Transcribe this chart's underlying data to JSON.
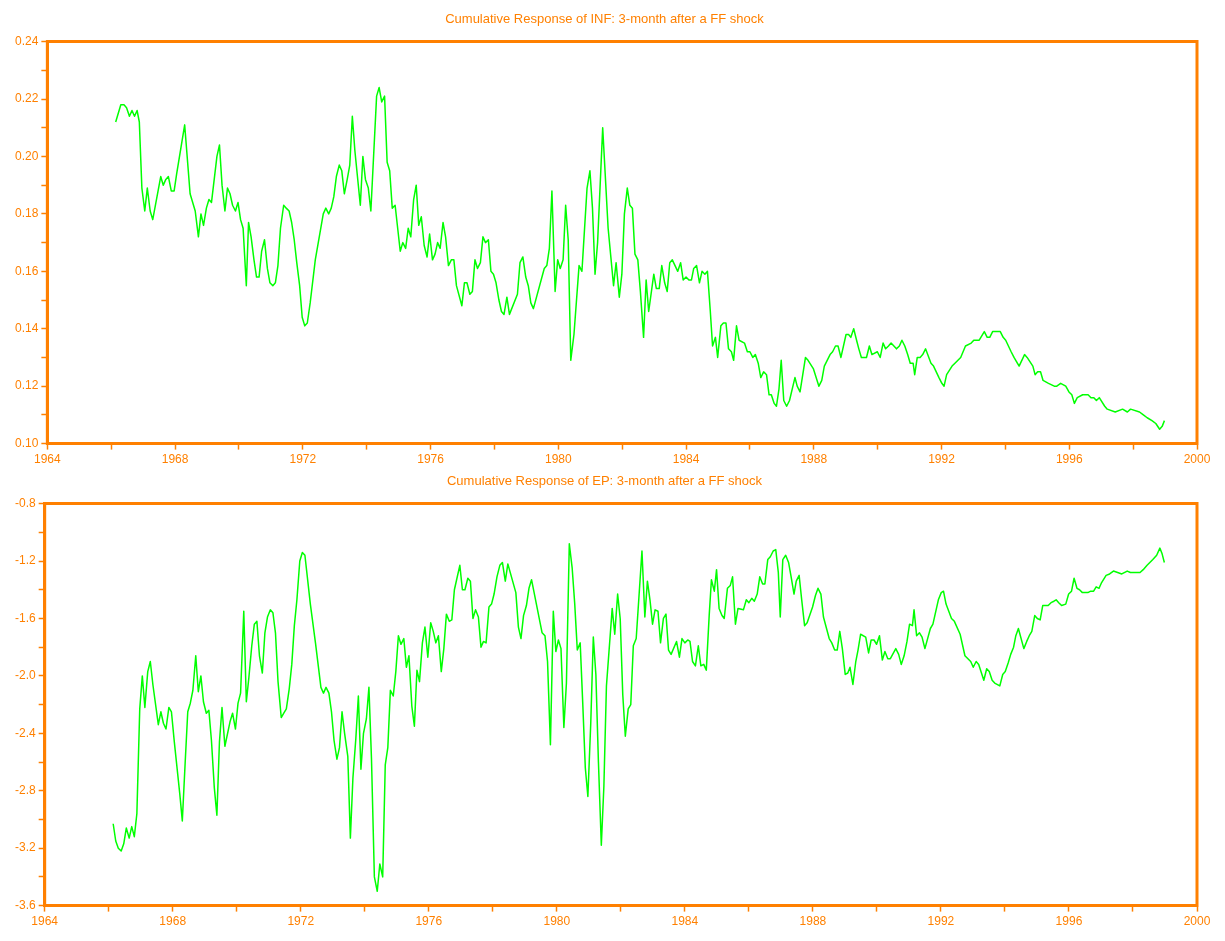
{
  "chart_data": [
    {
      "type": "line",
      "title": "Cumulative Response of INF: 3-month after a FF shock",
      "color": "#00ff00",
      "grid": false,
      "legend": false,
      "x": [
        1966.14,
        1966.3,
        1966.4,
        1966.48,
        1966.57,
        1966.65,
        1966.73,
        1966.81,
        1966.88,
        1966.96,
        1967.05,
        1967.13,
        1967.22,
        1967.3,
        1967.55,
        1967.63,
        1967.71,
        1967.79,
        1967.88,
        1967.97,
        1968.05,
        1968.3,
        1968.47,
        1968.63,
        1968.73,
        1968.81,
        1968.89,
        1968.98,
        1969.06,
        1969.14,
        1969.31,
        1969.39,
        1969.47,
        1969.56,
        1969.64,
        1969.72,
        1969.8,
        1969.89,
        1969.97,
        1970.05,
        1970.13,
        1970.23,
        1970.3,
        1970.38,
        1970.47,
        1970.55,
        1970.63,
        1970.71,
        1970.8,
        1970.89,
        1970.97,
        1971.06,
        1971.14,
        1971.22,
        1971.3,
        1971.4,
        1971.48,
        1971.57,
        1971.65,
        1971.73,
        1971.81,
        1971.9,
        1971.98,
        1972.06,
        1972.14,
        1972.23,
        1972.39,
        1972.64,
        1972.72,
        1972.81,
        1972.89,
        1972.97,
        1973.05,
        1973.14,
        1973.22,
        1973.3,
        1973.39,
        1973.47,
        1973.55,
        1973.63,
        1973.8,
        1973.88,
        1973.96,
        1974.05,
        1974.13,
        1974.31,
        1974.39,
        1974.47,
        1974.56,
        1974.64,
        1974.72,
        1974.8,
        1974.89,
        1975.05,
        1975.13,
        1975.22,
        1975.3,
        1975.38,
        1975.47,
        1975.55,
        1975.63,
        1975.71,
        1975.8,
        1975.89,
        1975.97,
        1976.06,
        1976.14,
        1976.22,
        1976.3,
        1976.39,
        1976.47,
        1976.56,
        1976.65,
        1976.73,
        1976.81,
        1976.98,
        1977.06,
        1977.14,
        1977.23,
        1977.31,
        1977.39,
        1977.47,
        1977.56,
        1977.64,
        1977.72,
        1977.81,
        1977.89,
        1977.97,
        1978.05,
        1978.14,
        1978.22,
        1978.3,
        1978.39,
        1978.47,
        1978.72,
        1978.8,
        1978.89,
        1978.98,
        1979.06,
        1979.14,
        1979.22,
        1979.56,
        1979.64,
        1979.72,
        1979.8,
        1979.9,
        1979.98,
        1980.06,
        1980.15,
        1980.23,
        1980.31,
        1980.39,
        1980.49,
        1980.65,
        1980.74,
        1980.9,
        1980.99,
        1981.07,
        1981.15,
        1981.23,
        1981.39,
        1981.56,
        1981.73,
        1981.81,
        1981.91,
        1981.99,
        1982.07,
        1982.16,
        1982.24,
        1982.32,
        1982.4,
        1982.49,
        1982.57,
        1982.67,
        1982.75,
        1982.83,
        1982.99,
        1983.07,
        1983.16,
        1983.24,
        1983.33,
        1983.41,
        1983.49,
        1983.57,
        1983.74,
        1983.83,
        1983.91,
        1984.0,
        1984.09,
        1984.17,
        1984.24,
        1984.33,
        1984.42,
        1984.5,
        1984.59,
        1984.67,
        1984.76,
        1984.83,
        1984.92,
        1984.99,
        1985.09,
        1985.17,
        1985.25,
        1985.33,
        1985.42,
        1985.49,
        1985.58,
        1985.66,
        1985.83,
        1985.92,
        1986.0,
        1986.09,
        1986.17,
        1986.26,
        1986.34,
        1986.43,
        1986.52,
        1986.6,
        1986.67,
        1986.76,
        1986.83,
        1986.91,
        1986.98,
        1987.06,
        1987.15,
        1987.24,
        1987.41,
        1987.48,
        1987.57,
        1987.74,
        1987.82,
        1987.99,
        1988.16,
        1988.25,
        1988.33,
        1988.51,
        1988.59,
        1988.68,
        1988.76,
        1988.85,
        1989.01,
        1989.09,
        1989.16,
        1989.25,
        1989.34,
        1989.41,
        1989.49,
        1989.65,
        1989.74,
        1989.82,
        1989.99,
        1990.08,
        1990.17,
        1990.25,
        1990.34,
        1990.42,
        1990.59,
        1990.68,
        1990.76,
        1990.85,
        1990.94,
        1991.02,
        1991.11,
        1991.16,
        1991.24,
        1991.33,
        1991.41,
        1991.5,
        1991.67,
        1991.75,
        1991.92,
        1992.01,
        1992.08,
        1992.16,
        1992.33,
        1992.42,
        1992.6,
        1992.75,
        1992.93,
        1993.01,
        1993.1,
        1993.18,
        1993.34,
        1993.43,
        1993.51,
        1993.6,
        1993.68,
        1993.77,
        1993.84,
        1993.93,
        1994.01,
        1994.18,
        1994.27,
        1994.43,
        1994.6,
        1994.68,
        1994.86,
        1994.93,
        1995.01,
        1995.1,
        1995.18,
        1995.35,
        1995.53,
        1995.61,
        1995.73,
        1995.89,
        1995.99,
        1996.08,
        1996.16,
        1996.25,
        1996.42,
        1996.59,
        1996.68,
        1996.77,
        1996.85,
        1996.94,
        1997.11,
        1997.19,
        1997.44,
        1997.67,
        1997.82,
        1997.92,
        1998.2,
        1998.32,
        1998.44,
        1998.59,
        1998.71,
        1998.83,
        1998.91,
        1998.98
      ],
      "values": [
        0.212,
        0.218,
        0.218,
        0.217,
        0.214,
        0.216,
        0.214,
        0.216,
        0.212,
        0.189,
        0.181,
        0.189,
        0.181,
        0.178,
        0.193,
        0.19,
        0.192,
        0.193,
        0.188,
        0.188,
        0.194,
        0.211,
        0.187,
        0.181,
        0.172,
        0.18,
        0.176,
        0.182,
        0.185,
        0.184,
        0.2,
        0.204,
        0.19,
        0.181,
        0.189,
        0.187,
        0.183,
        0.181,
        0.184,
        0.178,
        0.175,
        0.155,
        0.177,
        0.172,
        0.164,
        0.158,
        0.158,
        0.167,
        0.171,
        0.161,
        0.156,
        0.155,
        0.156,
        0.162,
        0.175,
        0.183,
        0.182,
        0.181,
        0.177,
        0.171,
        0.163,
        0.155,
        0.144,
        0.141,
        0.142,
        0.149,
        0.164,
        0.18,
        0.182,
        0.18,
        0.182,
        0.186,
        0.193,
        0.197,
        0.195,
        0.187,
        0.192,
        0.197,
        0.214,
        0.202,
        0.183,
        0.2,
        0.192,
        0.189,
        0.181,
        0.221,
        0.224,
        0.219,
        0.221,
        0.198,
        0.195,
        0.182,
        0.183,
        0.167,
        0.17,
        0.168,
        0.175,
        0.172,
        0.185,
        0.19,
        0.176,
        0.179,
        0.169,
        0.165,
        0.173,
        0.164,
        0.166,
        0.17,
        0.168,
        0.177,
        0.172,
        0.162,
        0.164,
        0.164,
        0.155,
        0.148,
        0.156,
        0.156,
        0.152,
        0.153,
        0.164,
        0.161,
        0.163,
        0.172,
        0.17,
        0.171,
        0.16,
        0.159,
        0.156,
        0.15,
        0.146,
        0.145,
        0.151,
        0.145,
        0.152,
        0.163,
        0.165,
        0.158,
        0.155,
        0.149,
        0.147,
        0.161,
        0.162,
        0.168,
        0.188,
        0.153,
        0.164,
        0.161,
        0.164,
        0.183,
        0.171,
        0.129,
        0.138,
        0.162,
        0.16,
        0.189,
        0.195,
        0.182,
        0.159,
        0.17,
        0.21,
        0.175,
        0.155,
        0.163,
        0.151,
        0.159,
        0.18,
        0.189,
        0.183,
        0.182,
        0.166,
        0.164,
        0.153,
        0.137,
        0.157,
        0.146,
        0.159,
        0.154,
        0.154,
        0.162,
        0.156,
        0.153,
        0.163,
        0.164,
        0.16,
        0.163,
        0.157,
        0.158,
        0.157,
        0.157,
        0.161,
        0.162,
        0.156,
        0.16,
        0.159,
        0.16,
        0.146,
        0.134,
        0.137,
        0.13,
        0.141,
        0.142,
        0.142,
        0.133,
        0.132,
        0.129,
        0.141,
        0.136,
        0.135,
        0.132,
        0.132,
        0.13,
        0.131,
        0.128,
        0.123,
        0.125,
        0.124,
        0.117,
        0.117,
        0.114,
        0.113,
        0.119,
        0.129,
        0.115,
        0.113,
        0.115,
        0.123,
        0.12,
        0.118,
        0.13,
        0.129,
        0.126,
        0.12,
        0.122,
        0.127,
        0.131,
        0.132,
        0.134,
        0.134,
        0.13,
        0.138,
        0.138,
        0.137,
        0.14,
        0.136,
        0.133,
        0.13,
        0.13,
        0.134,
        0.131,
        0.132,
        0.13,
        0.135,
        0.133,
        0.134,
        0.135,
        0.133,
        0.134,
        0.136,
        0.134,
        0.131,
        0.128,
        0.128,
        0.124,
        0.13,
        0.13,
        0.131,
        0.133,
        0.128,
        0.127,
        0.123,
        0.121,
        0.12,
        0.124,
        0.127,
        0.128,
        0.13,
        0.134,
        0.135,
        0.136,
        0.136,
        0.136,
        0.139,
        0.137,
        0.137,
        0.139,
        0.139,
        0.139,
        0.139,
        0.137,
        0.136,
        0.132,
        0.13,
        0.127,
        0.131,
        0.13,
        0.127,
        0.124,
        0.125,
        0.125,
        0.122,
        0.121,
        0.12,
        0.12,
        0.121,
        0.12,
        0.118,
        0.117,
        0.114,
        0.116,
        0.117,
        0.117,
        0.116,
        0.116,
        0.115,
        0.116,
        0.113,
        0.112,
        0.111,
        0.112,
        0.111,
        0.112,
        0.111,
        0.11,
        0.109,
        0.108,
        0.107,
        0.105,
        0.106,
        0.108
      ],
      "xlim": [
        1964,
        2000
      ],
      "xticks": [
        1964,
        {
          "value": 1966,
          "label": null
        },
        1968,
        {
          "value": 1970,
          "label": null
        },
        1972,
        {
          "value": 1974,
          "label": null
        },
        1976,
        {
          "value": 1978,
          "label": null
        },
        1980,
        {
          "value": 1982,
          "label": null
        },
        1984,
        {
          "value": 1986,
          "label": null
        },
        1988,
        {
          "value": 1990,
          "label": null
        },
        1992,
        {
          "value": 1994,
          "label": null
        },
        1996,
        {
          "value": 1998,
          "label": null
        },
        2000
      ],
      "ylim": [
        0.1,
        0.24
      ],
      "yticks": [
        {
          "value": 0.1,
          "label": "0.10"
        },
        {
          "value": 0.11,
          "label": null
        },
        0.12,
        {
          "value": 0.13,
          "label": null
        },
        0.14,
        {
          "value": 0.15,
          "label": null
        },
        0.16,
        {
          "value": 0.17,
          "label": null
        },
        0.18,
        {
          "value": 0.19,
          "label": null
        },
        {
          "value": 0.2,
          "label": "0.20"
        },
        {
          "value": 0.21,
          "label": null
        },
        0.22,
        {
          "value": 0.23,
          "label": null
        },
        0.24
      ]
    },
    {
      "type": "line",
      "title": "Cumulative Response of EP: 3-month after a FF shock",
      "color": "#00ff00",
      "grid": false,
      "legend": false,
      "x": [
        1966.14,
        1966.22,
        1966.3,
        1966.39,
        1966.47,
        1966.55,
        1966.64,
        1966.72,
        1966.8,
        1966.88,
        1966.97,
        1967.05,
        1967.13,
        1967.22,
        1967.3,
        1967.38,
        1967.55,
        1967.63,
        1967.71,
        1967.79,
        1967.88,
        1967.96,
        1968.05,
        1968.22,
        1968.3,
        1968.39,
        1968.47,
        1968.55,
        1968.63,
        1968.72,
        1968.8,
        1968.88,
        1968.96,
        1969.05,
        1969.13,
        1969.21,
        1969.3,
        1969.38,
        1969.46,
        1969.54,
        1969.63,
        1969.79,
        1969.87,
        1969.96,
        1970.04,
        1970.12,
        1970.22,
        1970.3,
        1970.38,
        1970.47,
        1970.55,
        1970.63,
        1970.71,
        1970.8,
        1970.88,
        1970.96,
        1971.05,
        1971.13,
        1971.21,
        1971.29,
        1971.39,
        1971.47,
        1971.55,
        1971.64,
        1971.72,
        1971.8,
        1971.88,
        1971.97,
        1972.05,
        1972.13,
        1972.3,
        1972.46,
        1972.63,
        1972.71,
        1972.79,
        1972.88,
        1972.96,
        1973.04,
        1973.13,
        1973.21,
        1973.29,
        1973.37,
        1973.47,
        1973.55,
        1973.63,
        1973.72,
        1973.8,
        1973.88,
        1973.96,
        1974.05,
        1974.13,
        1974.21,
        1974.3,
        1974.39,
        1974.47,
        1974.56,
        1974.64,
        1974.72,
        1974.8,
        1974.89,
        1974.97,
        1975.05,
        1975.13,
        1975.22,
        1975.3,
        1975.38,
        1975.47,
        1975.55,
        1975.63,
        1975.71,
        1975.8,
        1975.88,
        1975.97,
        1976.06,
        1976.14,
        1976.22,
        1976.3,
        1976.39,
        1976.47,
        1976.55,
        1976.64,
        1976.72,
        1976.8,
        1976.88,
        1976.97,
        1977.05,
        1977.13,
        1977.22,
        1977.3,
        1977.38,
        1977.46,
        1977.55,
        1977.63,
        1977.71,
        1977.79,
        1977.88,
        1977.96,
        1978.04,
        1978.13,
        1978.22,
        1978.3,
        1978.39,
        1978.47,
        1978.72,
        1978.8,
        1978.88,
        1978.96,
        1979.05,
        1979.13,
        1979.21,
        1979.54,
        1979.63,
        1979.71,
        1979.8,
        1979.89,
        1979.97,
        1980.05,
        1980.13,
        1980.22,
        1980.3,
        1980.39,
        1980.48,
        1980.56,
        1980.64,
        1980.73,
        1980.81,
        1980.89,
        1980.97,
        1981.06,
        1981.14,
        1981.22,
        1981.3,
        1981.39,
        1981.47,
        1981.55,
        1981.73,
        1981.81,
        1981.9,
        1981.98,
        1982.06,
        1982.14,
        1982.23,
        1982.31,
        1982.39,
        1982.48,
        1982.66,
        1982.75,
        1982.83,
        1982.91,
        1982.99,
        1983.07,
        1983.16,
        1983.24,
        1983.33,
        1983.41,
        1983.49,
        1983.57,
        1983.74,
        1983.83,
        1983.91,
        1984.0,
        1984.09,
        1984.16,
        1984.24,
        1984.33,
        1984.42,
        1984.5,
        1984.59,
        1984.67,
        1984.76,
        1984.83,
        1984.92,
        1984.99,
        1985.07,
        1985.16,
        1985.23,
        1985.33,
        1985.42,
        1985.49,
        1985.58,
        1985.66,
        1985.83,
        1985.92,
        1986.0,
        1986.09,
        1986.17,
        1986.26,
        1986.34,
        1986.43,
        1986.5,
        1986.59,
        1986.67,
        1986.76,
        1986.84,
        1986.92,
        1986.98,
        1987.06,
        1987.15,
        1987.24,
        1987.32,
        1987.41,
        1987.48,
        1987.57,
        1987.65,
        1987.74,
        1987.82,
        1987.99,
        1988.08,
        1988.16,
        1988.25,
        1988.33,
        1988.51,
        1988.59,
        1988.68,
        1988.76,
        1988.84,
        1988.92,
        1989.01,
        1989.09,
        1989.16,
        1989.25,
        1989.34,
        1989.41,
        1989.49,
        1989.65,
        1989.74,
        1989.82,
        1989.91,
        1989.99,
        1990.08,
        1990.17,
        1990.25,
        1990.34,
        1990.42,
        1990.59,
        1990.68,
        1990.76,
        1990.85,
        1990.94,
        1991.02,
        1991.11,
        1991.16,
        1991.24,
        1991.33,
        1991.41,
        1991.5,
        1991.67,
        1991.75,
        1991.92,
        1992.01,
        1992.08,
        1992.16,
        1992.33,
        1992.42,
        1992.6,
        1992.75,
        1992.93,
        1993.01,
        1993.1,
        1993.18,
        1993.34,
        1993.43,
        1993.51,
        1993.6,
        1993.68,
        1993.84,
        1993.93,
        1994.01,
        1994.1,
        1994.18,
        1994.27,
        1994.34,
        1994.42,
        1994.59,
        1994.68,
        1994.76,
        1994.84,
        1994.93,
        1995.01,
        1995.1,
        1995.18,
        1995.35,
        1995.44,
        1995.53,
        1995.6,
        1995.68,
        1995.77,
        1995.9,
        1995.99,
        1996.08,
        1996.16,
        1996.25,
        1996.33,
        1996.42,
        1996.59,
        1996.68,
        1996.77,
        1996.85,
        1996.94,
        1997.02,
        1997.16,
        1997.27,
        1997.39,
        1997.65,
        1997.82,
        1997.92,
        1998.22,
        1998.32,
        1998.44,
        1998.62,
        1998.74,
        1998.84,
        1998.91,
        1998.98
      ],
      "values": [
        -3.03,
        -3.15,
        -3.2,
        -3.22,
        -3.17,
        -3.06,
        -3.13,
        -3.05,
        -3.12,
        -2.96,
        -2.23,
        -2.0,
        -2.22,
        -1.97,
        -1.9,
        -2.06,
        -2.34,
        -2.25,
        -2.33,
        -2.37,
        -2.22,
        -2.25,
        -2.46,
        -2.82,
        -3.01,
        -2.6,
        -2.25,
        -2.19,
        -2.1,
        -1.86,
        -2.11,
        -2.0,
        -2.18,
        -2.26,
        -2.24,
        -2.45,
        -2.78,
        -2.97,
        -2.46,
        -2.22,
        -2.49,
        -2.32,
        -2.26,
        -2.37,
        -2.19,
        -2.12,
        -1.55,
        -2.18,
        -2.01,
        -1.79,
        -1.64,
        -1.62,
        -1.86,
        -1.98,
        -1.7,
        -1.59,
        -1.54,
        -1.56,
        -1.7,
        -2.04,
        -2.29,
        -2.26,
        -2.23,
        -2.09,
        -1.92,
        -1.65,
        -1.47,
        -1.2,
        -1.14,
        -1.16,
        -1.5,
        -1.77,
        -2.08,
        -2.12,
        -2.08,
        -2.12,
        -2.25,
        -2.45,
        -2.58,
        -2.5,
        -2.25,
        -2.4,
        -2.56,
        -3.13,
        -2.71,
        -2.44,
        -2.14,
        -2.65,
        -2.4,
        -2.3,
        -2.08,
        -2.58,
        -3.4,
        -3.5,
        -3.31,
        -3.4,
        -2.62,
        -2.5,
        -2.1,
        -2.14,
        -1.97,
        -1.72,
        -1.78,
        -1.74,
        -1.94,
        -1.86,
        -2.21,
        -2.35,
        -1.96,
        -2.04,
        -1.77,
        -1.66,
        -1.87,
        -1.63,
        -1.69,
        -1.77,
        -1.72,
        -1.97,
        -1.81,
        -1.57,
        -1.62,
        -1.61,
        -1.4,
        -1.32,
        -1.23,
        -1.4,
        -1.4,
        -1.32,
        -1.34,
        -1.6,
        -1.54,
        -1.59,
        -1.8,
        -1.76,
        -1.77,
        -1.52,
        -1.5,
        -1.43,
        -1.31,
        -1.23,
        -1.21,
        -1.34,
        -1.22,
        -1.42,
        -1.66,
        -1.74,
        -1.58,
        -1.51,
        -1.39,
        -1.33,
        -1.7,
        -1.72,
        -1.9,
        -2.48,
        -1.55,
        -1.83,
        -1.75,
        -1.81,
        -2.36,
        -2.05,
        -1.08,
        -1.25,
        -1.5,
        -1.82,
        -1.77,
        -2.19,
        -2.64,
        -2.84,
        -2.33,
        -1.73,
        -1.99,
        -2.6,
        -3.18,
        -2.77,
        -2.07,
        -1.53,
        -1.71,
        -1.43,
        -1.6,
        -2.13,
        -2.42,
        -2.23,
        -2.2,
        -1.79,
        -1.74,
        -1.13,
        -1.59,
        -1.34,
        -1.47,
        -1.64,
        -1.54,
        -1.55,
        -1.77,
        -1.6,
        -1.57,
        -1.82,
        -1.85,
        -1.76,
        -1.87,
        -1.74,
        -1.77,
        -1.75,
        -1.76,
        -1.9,
        -1.93,
        -1.79,
        -1.93,
        -1.92,
        -1.96,
        -1.58,
        -1.33,
        -1.41,
        -1.26,
        -1.53,
        -1.58,
        -1.6,
        -1.39,
        -1.37,
        -1.31,
        -1.64,
        -1.53,
        -1.54,
        -1.47,
        -1.49,
        -1.46,
        -1.48,
        -1.43,
        -1.31,
        -1.36,
        -1.36,
        -1.19,
        -1.17,
        -1.13,
        -1.12,
        -1.28,
        -1.59,
        -1.19,
        -1.16,
        -1.21,
        -1.31,
        -1.43,
        -1.34,
        -1.3,
        -1.47,
        -1.65,
        -1.63,
        -1.52,
        -1.44,
        -1.39,
        -1.43,
        -1.59,
        -1.74,
        -1.77,
        -1.82,
        -1.82,
        -1.69,
        -1.81,
        -1.99,
        -1.98,
        -1.94,
        -2.06,
        -1.9,
        -1.82,
        -1.71,
        -1.73,
        -1.84,
        -1.75,
        -1.75,
        -1.78,
        -1.72,
        -1.89,
        -1.83,
        -1.88,
        -1.88,
        -1.81,
        -1.85,
        -1.92,
        -1.86,
        -1.76,
        -1.64,
        -1.65,
        -1.54,
        -1.72,
        -1.7,
        -1.73,
        -1.81,
        -1.67,
        -1.64,
        -1.47,
        -1.42,
        -1.41,
        -1.5,
        -1.6,
        -1.62,
        -1.71,
        -1.86,
        -1.9,
        -1.94,
        -1.9,
        -1.92,
        -2.03,
        -1.95,
        -1.97,
        -2.03,
        -2.05,
        -2.07,
        -1.99,
        -1.97,
        -1.91,
        -1.85,
        -1.8,
        -1.72,
        -1.67,
        -1.81,
        -1.76,
        -1.72,
        -1.69,
        -1.58,
        -1.6,
        -1.61,
        -1.51,
        -1.51,
        -1.49,
        -1.48,
        -1.47,
        -1.49,
        -1.51,
        -1.5,
        -1.43,
        -1.41,
        -1.32,
        -1.39,
        -1.4,
        -1.42,
        -1.42,
        -1.41,
        -1.41,
        -1.38,
        -1.39,
        -1.35,
        -1.3,
        -1.29,
        -1.27,
        -1.29,
        -1.27,
        -1.28,
        -1.28,
        -1.26,
        -1.23,
        -1.19,
        -1.16,
        -1.11,
        -1.15,
        -1.21
      ],
      "xlim": [
        1964,
        2000
      ],
      "xticks": [
        1964,
        {
          "value": 1966,
          "label": null
        },
        1968,
        {
          "value": 1970,
          "label": null
        },
        1972,
        {
          "value": 1974,
          "label": null
        },
        1976,
        {
          "value": 1978,
          "label": null
        },
        1980,
        {
          "value": 1982,
          "label": null
        },
        1984,
        {
          "value": 1986,
          "label": null
        },
        1988,
        {
          "value": 1990,
          "label": null
        },
        1992,
        {
          "value": 1994,
          "label": null
        },
        1996,
        {
          "value": 1998,
          "label": null
        },
        2000
      ],
      "ylim": [
        -3.6,
        -0.8
      ],
      "yticks": [
        -3.6,
        {
          "value": -3.4,
          "label": null
        },
        -3.2,
        {
          "value": -3.0,
          "label": null
        },
        -2.8,
        {
          "value": -2.6,
          "label": null
        },
        -2.4,
        {
          "value": -2.2,
          "label": null
        },
        {
          "value": -2.0,
          "label": "-2.0"
        },
        {
          "value": -1.8,
          "label": null
        },
        -1.6,
        {
          "value": -1.4,
          "label": null
        },
        -1.2,
        {
          "value": -1.0,
          "label": null
        },
        -0.8
      ]
    }
  ]
}
